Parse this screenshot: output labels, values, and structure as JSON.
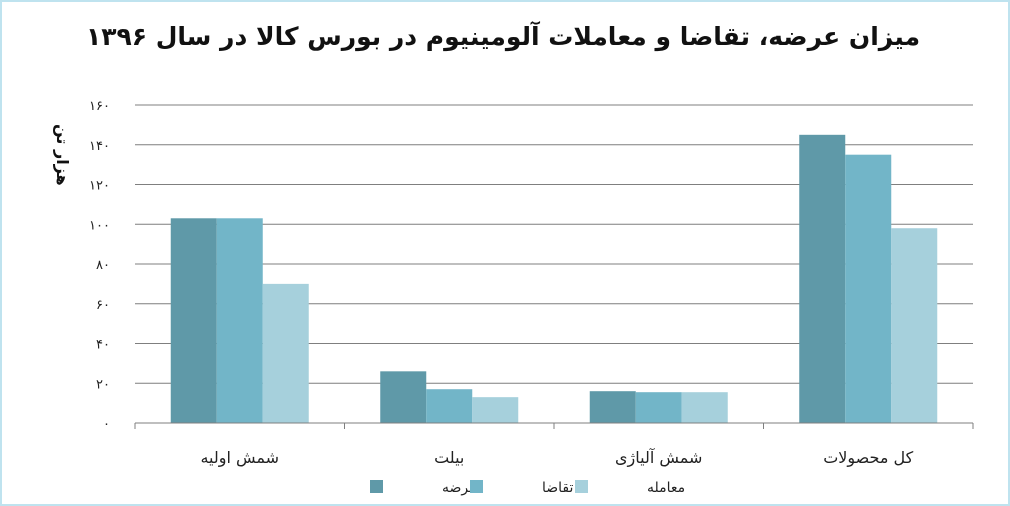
{
  "chart_data": {
    "type": "bar",
    "title": "میزان عرضه، تقاضا و معاملات آلومینیوم در بورس کالا در سال ۱۳۹۶",
    "ylabel": "هزار تن",
    "xlabel": "",
    "categories": [
      "شمش اولیه",
      "بیلت",
      "شمش آلیاژی",
      "کل محصولات"
    ],
    "series": [
      {
        "name": "عرضه",
        "values": [
          103,
          26,
          16,
          145
        ],
        "color": "#5f99a8"
      },
      {
        "name": "تقاضا",
        "values": [
          103,
          17,
          15.5,
          135
        ],
        "color": "#72b5c8"
      },
      {
        "name": "معامله",
        "values": [
          70,
          13,
          15.5,
          98
        ],
        "color": "#a6d0dc"
      }
    ],
    "ylim": [
      0,
      160
    ],
    "yticks": [
      "۰",
      "۲۰",
      "۴۰",
      "۶۰",
      "۸۰",
      "۱۰۰",
      "۱۲۰",
      "۱۴۰",
      "۱۶۰"
    ],
    "ytick_values": [
      0,
      20,
      40,
      60,
      80,
      100,
      120,
      140,
      160
    ],
    "grid": true,
    "legend_position": "bottom"
  }
}
